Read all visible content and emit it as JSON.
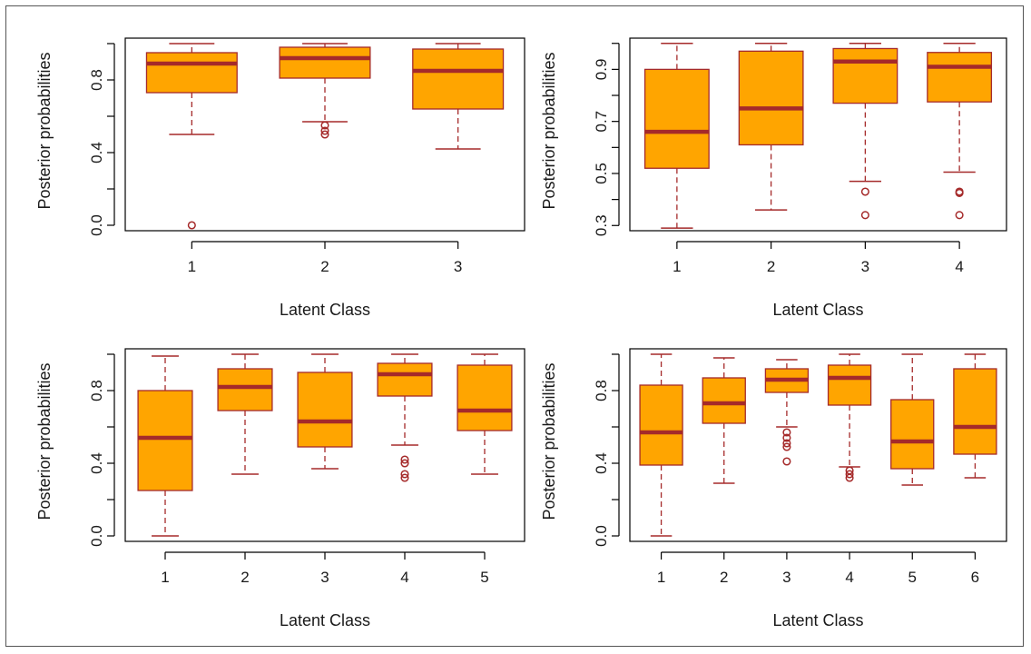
{
  "colors": {
    "box_fill": "#FFA500",
    "box_border": "#A52A2A",
    "axis": "#000000"
  },
  "chart_data": [
    {
      "type": "boxplot",
      "xlabel": "Latent Class",
      "ylabel": "Posterior probabilities",
      "ylim": [
        -0.03,
        1.03
      ],
      "yticks": [
        0.0,
        0.4,
        0.8
      ],
      "ytick_labels": [
        "0.0",
        "0.4",
        "0.8"
      ],
      "yminor_ticks": [
        0.2,
        0.6,
        1.0
      ],
      "categories": [
        "1",
        "2",
        "3"
      ],
      "boxes": [
        {
          "whisker_low": 0.5,
          "q1": 0.73,
          "median": 0.89,
          "q3": 0.95,
          "whisker_high": 1.0,
          "outliers": [
            0.0
          ]
        },
        {
          "whisker_low": 0.57,
          "q1": 0.81,
          "median": 0.92,
          "q3": 0.98,
          "whisker_high": 1.0,
          "outliers": [
            0.5,
            0.52,
            0.55
          ]
        },
        {
          "whisker_low": 0.42,
          "q1": 0.64,
          "median": 0.85,
          "q3": 0.97,
          "whisker_high": 1.0,
          "outliers": []
        }
      ]
    },
    {
      "type": "boxplot",
      "xlabel": "Latent Class",
      "ylabel": "Posterior probabilities",
      "ylim": [
        0.28,
        1.02
      ],
      "yticks": [
        0.3,
        0.5,
        0.7,
        0.9
      ],
      "ytick_labels": [
        "0.3",
        "0.5",
        "0.7",
        "0.9"
      ],
      "yminor_ticks": [
        0.4,
        0.6,
        0.8,
        1.0
      ],
      "categories": [
        "1",
        "2",
        "3",
        "4"
      ],
      "boxes": [
        {
          "whisker_low": 0.29,
          "q1": 0.52,
          "median": 0.66,
          "q3": 0.9,
          "whisker_high": 1.0,
          "outliers": []
        },
        {
          "whisker_low": 0.36,
          "q1": 0.61,
          "median": 0.75,
          "q3": 0.97,
          "whisker_high": 1.0,
          "outliers": []
        },
        {
          "whisker_low": 0.47,
          "q1": 0.77,
          "median": 0.93,
          "q3": 0.98,
          "whisker_high": 1.0,
          "outliers": [
            0.34,
            0.43
          ]
        },
        {
          "whisker_low": 0.505,
          "q1": 0.775,
          "median": 0.91,
          "q3": 0.965,
          "whisker_high": 1.0,
          "outliers": [
            0.34,
            0.425,
            0.43
          ]
        }
      ]
    },
    {
      "type": "boxplot",
      "xlabel": "Latent Class",
      "ylabel": "Posterior probabilities",
      "ylim": [
        -0.03,
        1.03
      ],
      "yticks": [
        0.0,
        0.4,
        0.8
      ],
      "ytick_labels": [
        "0.0",
        "0.4",
        "0.8"
      ],
      "yminor_ticks": [
        0.2,
        0.6,
        1.0
      ],
      "categories": [
        "1",
        "2",
        "3",
        "4",
        "5"
      ],
      "boxes": [
        {
          "whisker_low": 0.0,
          "q1": 0.25,
          "median": 0.54,
          "q3": 0.8,
          "whisker_high": 0.99,
          "outliers": []
        },
        {
          "whisker_low": 0.34,
          "q1": 0.69,
          "median": 0.82,
          "q3": 0.92,
          "whisker_high": 1.0,
          "outliers": []
        },
        {
          "whisker_low": 0.37,
          "q1": 0.49,
          "median": 0.63,
          "q3": 0.9,
          "whisker_high": 1.0,
          "outliers": []
        },
        {
          "whisker_low": 0.5,
          "q1": 0.77,
          "median": 0.89,
          "q3": 0.95,
          "whisker_high": 1.0,
          "outliers": [
            0.32,
            0.34,
            0.4,
            0.42
          ]
        },
        {
          "whisker_low": 0.34,
          "q1": 0.58,
          "median": 0.69,
          "q3": 0.94,
          "whisker_high": 1.0,
          "outliers": []
        }
      ]
    },
    {
      "type": "boxplot",
      "xlabel": "Latent Class",
      "ylabel": "Posterior probabilities",
      "ylim": [
        -0.03,
        1.03
      ],
      "yticks": [
        0.0,
        0.4,
        0.8
      ],
      "ytick_labels": [
        "0.0",
        "0.4",
        "0.8"
      ],
      "yminor_ticks": [
        0.2,
        0.6,
        1.0
      ],
      "categories": [
        "1",
        "2",
        "3",
        "4",
        "5",
        "6"
      ],
      "boxes": [
        {
          "whisker_low": 0.0,
          "q1": 0.39,
          "median": 0.57,
          "q3": 0.83,
          "whisker_high": 1.0,
          "outliers": []
        },
        {
          "whisker_low": 0.29,
          "q1": 0.62,
          "median": 0.73,
          "q3": 0.87,
          "whisker_high": 0.98,
          "outliers": []
        },
        {
          "whisker_low": 0.6,
          "q1": 0.79,
          "median": 0.86,
          "q3": 0.92,
          "whisker_high": 0.97,
          "outliers": [
            0.41,
            0.49,
            0.51,
            0.54,
            0.57
          ]
        },
        {
          "whisker_low": 0.38,
          "q1": 0.72,
          "median": 0.87,
          "q3": 0.94,
          "whisker_high": 1.0,
          "outliers": [
            0.32,
            0.34,
            0.36
          ]
        },
        {
          "whisker_low": 0.28,
          "q1": 0.37,
          "median": 0.52,
          "q3": 0.75,
          "whisker_high": 1.0,
          "outliers": []
        },
        {
          "whisker_low": 0.32,
          "q1": 0.45,
          "median": 0.6,
          "q3": 0.92,
          "whisker_high": 1.0,
          "outliers": []
        }
      ]
    }
  ]
}
